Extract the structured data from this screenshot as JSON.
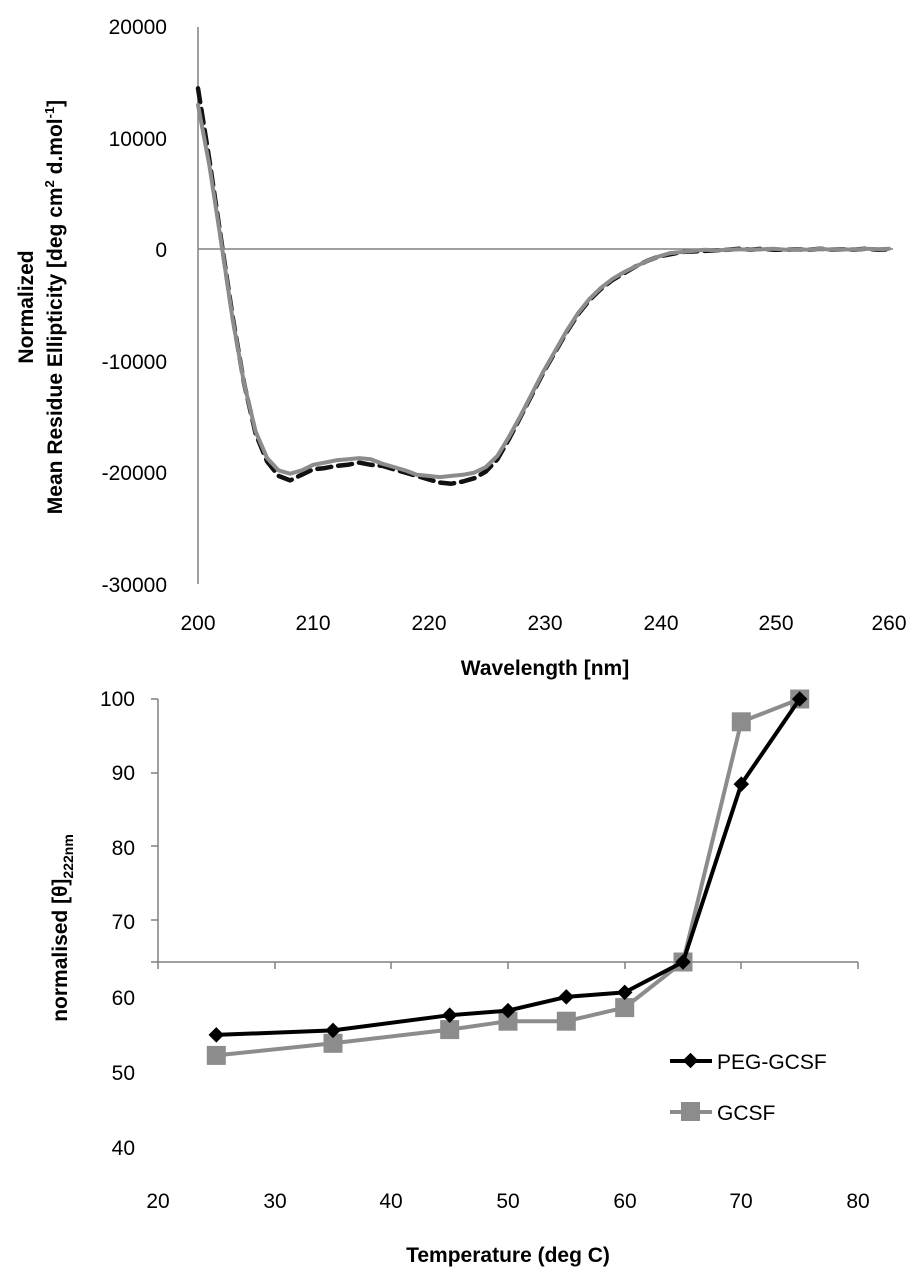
{
  "chart_data": [
    {
      "type": "line",
      "xlabel": "Wavelength [nm]",
      "ylabel_line1": "Normalized",
      "ylabel_line2_prefix": "Mean Residue Ellipticity [deg cm",
      "ylabel_sup1": "2",
      "ylabel_line2_mid": " d.mol",
      "ylabel_sup2": "-1",
      "ylabel_line2_suffix": "]",
      "xlim": [
        200,
        260
      ],
      "ylim": [
        -30000,
        20000
      ],
      "x_ticks": [
        "200",
        "210",
        "220",
        "230",
        "240",
        "250",
        "260"
      ],
      "y_ticks": [
        "20000",
        "10000",
        "0",
        "-10000",
        "-20000",
        "-30000"
      ],
      "legend": "none",
      "series": [
        {
          "style": "dashed",
          "color": "#111111",
          "x": [
            200,
            201,
            202,
            203,
            204,
            205,
            206,
            207,
            208,
            209,
            210,
            211,
            212,
            213,
            214,
            215,
            216,
            217,
            218,
            219,
            220,
            221,
            222,
            223,
            224,
            225,
            226,
            227,
            228,
            229,
            230,
            231,
            232,
            233,
            234,
            235,
            236,
            237,
            238,
            239,
            240,
            241,
            242,
            243,
            244,
            245,
            246,
            247,
            248,
            249,
            250,
            251,
            252,
            253,
            254,
            255,
            256,
            257,
            258,
            259,
            260
          ],
          "y": [
            14500,
            8000,
            1000,
            -6000,
            -12000,
            -16500,
            -19000,
            -20300,
            -20700,
            -20200,
            -19700,
            -19600,
            -19400,
            -19300,
            -19100,
            -19300,
            -19400,
            -19700,
            -20000,
            -20300,
            -20600,
            -20900,
            -21000,
            -20800,
            -20500,
            -19900,
            -18800,
            -17000,
            -15000,
            -13000,
            -11000,
            -9200,
            -7400,
            -5800,
            -4500,
            -3500,
            -2700,
            -2100,
            -1500,
            -1000,
            -600,
            -400,
            -200,
            -150,
            -100,
            -50,
            0,
            100,
            0,
            100,
            0,
            0,
            50,
            0,
            100,
            0,
            50,
            0,
            100,
            0,
            50
          ]
        },
        {
          "style": "solid",
          "color": "#8c8c8c",
          "x": [
            200,
            201,
            202,
            203,
            204,
            205,
            206,
            207,
            208,
            209,
            210,
            211,
            212,
            213,
            214,
            215,
            216,
            217,
            218,
            219,
            220,
            221,
            222,
            223,
            224,
            225,
            226,
            227,
            228,
            229,
            230,
            231,
            232,
            233,
            234,
            235,
            236,
            237,
            238,
            239,
            240,
            241,
            242,
            243,
            244,
            245,
            246,
            247,
            248,
            249,
            250,
            251,
            252,
            253,
            254,
            255,
            256,
            257,
            258,
            259,
            260
          ],
          "y": [
            13000,
            7500,
            800,
            -6200,
            -12000,
            -16300,
            -18700,
            -19800,
            -20100,
            -19800,
            -19300,
            -19100,
            -18900,
            -18800,
            -18700,
            -18800,
            -19200,
            -19500,
            -19800,
            -20200,
            -20300,
            -20400,
            -20300,
            -20200,
            -20000,
            -19500,
            -18500,
            -16800,
            -14900,
            -12900,
            -10900,
            -9100,
            -7300,
            -5700,
            -4400,
            -3400,
            -2600,
            -2000,
            -1500,
            -1000,
            -600,
            -300,
            -200,
            -100,
            0,
            -50,
            0,
            50,
            0,
            50,
            100,
            0,
            50,
            0,
            100,
            0,
            50,
            0,
            100,
            50,
            100
          ]
        }
      ]
    },
    {
      "type": "line",
      "xlabel": "Temperature (deg C)",
      "ylabel_main": "normalised [θ]",
      "ylabel_sub": "222nm",
      "xlim": [
        20,
        80
      ],
      "ylim": [
        40,
        100
      ],
      "x_ticks": [
        "20",
        "30",
        "40",
        "50",
        "60",
        "70",
        "80"
      ],
      "y_ticks": [
        "100",
        "90",
        "80",
        "70",
        "60",
        "50",
        "40"
      ],
      "legend": "bottom-right",
      "series": [
        {
          "name": "PEG-GCSF",
          "color": "#000000",
          "marker": "diamond",
          "x": [
            25,
            35,
            45,
            50,
            55,
            60,
            65,
            70,
            75
          ],
          "y": [
            55.8,
            56.4,
            58.4,
            59,
            60.8,
            61.4,
            65.4,
            88.8,
            100
          ]
        },
        {
          "name": "GCSF",
          "color": "#8c8c8c",
          "marker": "square",
          "x": [
            25,
            35,
            45,
            50,
            55,
            60,
            65,
            70,
            75
          ],
          "y": [
            53.1,
            54.7,
            56.5,
            57.6,
            57.6,
            59.4,
            65.4,
            97,
            100
          ]
        }
      ]
    }
  ]
}
